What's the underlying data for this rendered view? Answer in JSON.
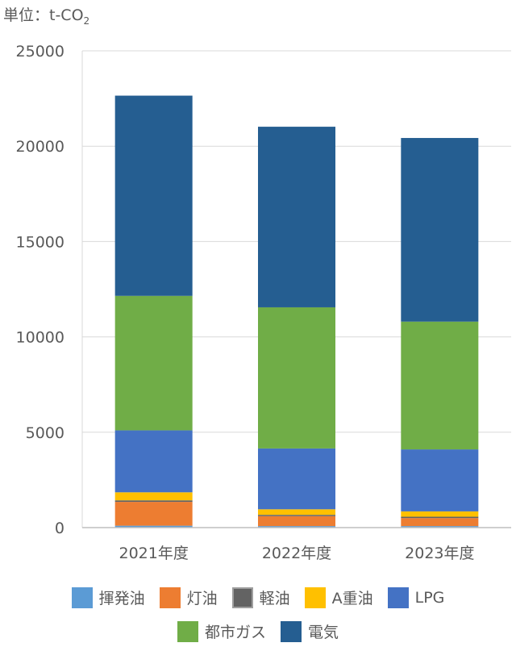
{
  "unit": {
    "prefix": "単位：t-CO",
    "subscript": "2"
  },
  "chart_data": {
    "type": "bar",
    "stacked": true,
    "categories": [
      "2021年度",
      "2022年度",
      "2023年度"
    ],
    "ylim": [
      0,
      25000
    ],
    "yticks": [
      0,
      5000,
      10000,
      15000,
      20000,
      25000
    ],
    "grid": true,
    "legend_position": "bottom",
    "series": [
      {
        "name": "揮発油",
        "color": "#5B9BD5",
        "values": [
          100,
          80,
          80
        ]
      },
      {
        "name": "灯油",
        "color": "#ED7D31",
        "values": [
          1250,
          520,
          420
        ]
      },
      {
        "name": "軽油",
        "color": "#636363",
        "values": [
          80,
          70,
          70
        ]
      },
      {
        "name": "A重油",
        "color": "#FFC000",
        "values": [
          420,
          290,
          280
        ]
      },
      {
        "name": "LPG",
        "color": "#4472C4",
        "values": [
          3250,
          3190,
          3250
        ]
      },
      {
        "name": "都市ガス",
        "color": "#70AD47",
        "values": [
          7050,
          7400,
          6700
        ]
      },
      {
        "name": "電気",
        "color": "#255E91",
        "values": [
          10500,
          9470,
          9630
        ]
      }
    ]
  }
}
